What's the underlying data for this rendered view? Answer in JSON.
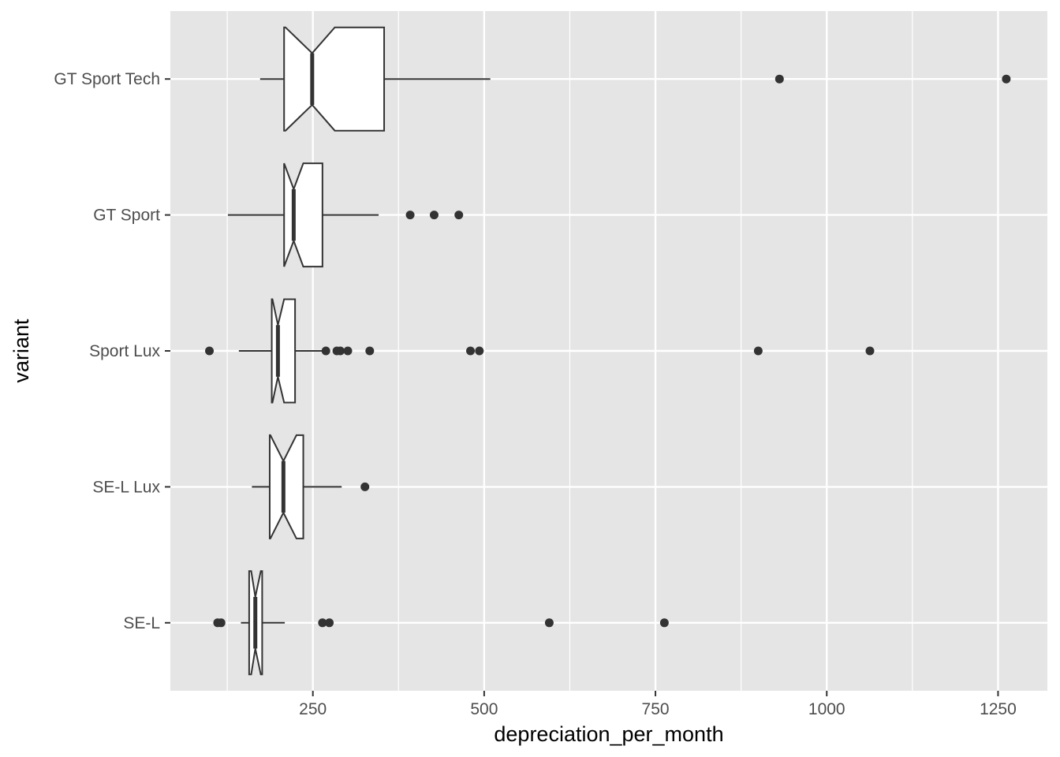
{
  "chart_data": {
    "type": "boxplot",
    "orientation": "horizontal",
    "notched": true,
    "xlabel": "depreciation_per_month",
    "ylabel": "variant",
    "xlim": [
      42,
      1322
    ],
    "x_ticks": [
      250,
      500,
      750,
      1000,
      1250
    ],
    "x_tick_labels": [
      "250",
      "500",
      "750",
      "1000",
      "1250"
    ],
    "x_minor_ticks": [
      125,
      375,
      625,
      875,
      1125
    ],
    "grid": true,
    "panel_background": "#e5e5e5",
    "grid_color": "#ffffff",
    "box_fill": "#ffffff",
    "line_color": "#333333",
    "point_color": "#333333",
    "categories": [
      "GT Sport Tech",
      "GT Sport",
      "Sport Lux",
      "SE-L Lux",
      "SE-L"
    ],
    "series": [
      {
        "category": "GT Sport Tech",
        "whisker_low": 173,
        "q1": 208,
        "median": 249,
        "q3": 354,
        "whisker_high": 509,
        "notch_low": 210,
        "notch_high": 282,
        "outliers": [
          931,
          1262
        ]
      },
      {
        "category": "GT Sport",
        "whisker_low": 126,
        "q1": 208,
        "median": 222,
        "q3": 264,
        "whisker_high": 346,
        "notch_low": 208,
        "notch_high": 236,
        "outliers": [
          392,
          427,
          463
        ]
      },
      {
        "category": "Sport Lux",
        "whisker_low": 142,
        "q1": 190,
        "median": 199,
        "q3": 224,
        "whisker_high": 266,
        "notch_low": 191,
        "notch_high": 208,
        "outliers": [
          99,
          269,
          285,
          290,
          301,
          333,
          480,
          493,
          900,
          1063
        ]
      },
      {
        "category": "SE-L Lux",
        "whisker_low": 161,
        "q1": 187,
        "median": 207,
        "q3": 236,
        "whisker_high": 292,
        "notch_low": 188,
        "notch_high": 226,
        "outliers": [
          326
        ]
      },
      {
        "category": "SE-L",
        "whisker_low": 145,
        "q1": 157,
        "median": 166,
        "q3": 176,
        "whisker_high": 209,
        "notch_low": 160,
        "notch_high": 174,
        "outliers": [
          111,
          116,
          264,
          274,
          595,
          763
        ]
      }
    ]
  }
}
